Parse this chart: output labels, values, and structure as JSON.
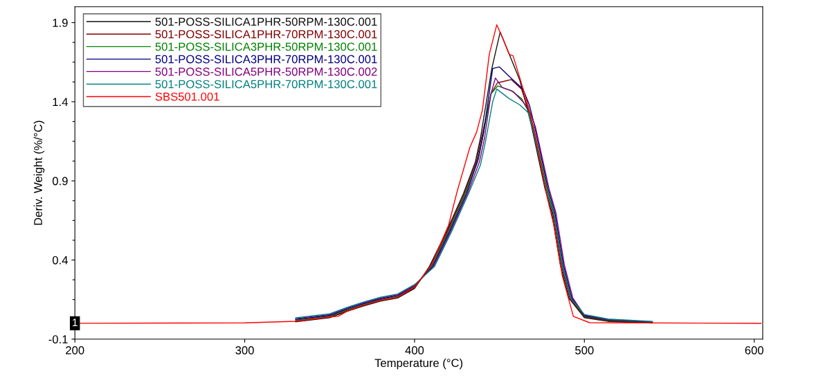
{
  "chart_data": {
    "type": "line",
    "xlabel": "Temperature (°C)",
    "ylabel": "Deriv. Weight (%/°C)",
    "xlim": [
      200,
      605
    ],
    "xticks": [
      200,
      300,
      400,
      500,
      600
    ],
    "ylim": [
      -0.1,
      2.0
    ],
    "yticks": [
      -0.1,
      {
        "value": 0.025,
        "label": null
      },
      {
        "value": 0.15,
        "label": null
      },
      {
        "value": 0.275,
        "label": null
      },
      0.4,
      {
        "value": 0.525,
        "label": null
      },
      {
        "value": 0.65,
        "label": null
      },
      {
        "value": 0.775,
        "label": null
      },
      0.9,
      {
        "value": 1.025,
        "label": null
      },
      {
        "value": 1.15,
        "label": null
      },
      {
        "value": 1.275,
        "label": null
      },
      1.4,
      {
        "value": 1.525,
        "label": null
      },
      {
        "value": 1.65,
        "label": null
      },
      {
        "value": 1.775,
        "label": null
      },
      1.9
    ],
    "grid": false,
    "legend": "top left",
    "line_style": "solid",
    "marker": "none",
    "annotations": [
      {
        "text": "1",
        "x": 200,
        "y": 0
      }
    ],
    "series": [
      {
        "name": "501-POSS-SILICA1PHR-50RPM-130C.001",
        "color": "#111111",
        "x": [
          330,
          350,
          360,
          370,
          380,
          390,
          400,
          408.8,
          418.8,
          428.8,
          435.8,
          438.8,
          445.5,
          450.4,
          455,
          462,
          465.8,
          468.8,
          476.8,
          480.8,
          485.8,
          490.8,
          500,
          514,
          540
        ],
        "values": [
          0.01,
          0.035,
          0.075,
          0.11,
          0.14,
          0.16,
          0.22,
          0.36,
          0.58,
          0.82,
          1.02,
          1.17,
          1.61,
          1.84,
          1.72,
          1.535,
          1.38,
          1.25,
          0.85,
          0.7,
          0.37,
          0.16,
          0.036,
          0.012,
          0.002
        ]
      },
      {
        "name": "501-POSS-SILICA1PHR-70RPM-130C.001",
        "color": "#800000",
        "x": [
          330,
          350,
          360,
          370,
          380,
          390,
          400,
          409.4,
          419.4,
          429.4,
          436.4,
          439.4,
          445,
          448.8,
          453,
          457,
          463,
          466.4,
          469.4,
          477.4,
          481.4,
          486.4,
          491.4,
          500,
          514,
          540
        ],
        "values": [
          0.015,
          0.04,
          0.08,
          0.115,
          0.145,
          0.165,
          0.225,
          0.36,
          0.58,
          0.82,
          1.02,
          1.17,
          1.45,
          1.52,
          1.53,
          1.54,
          1.48,
          1.37,
          1.25,
          0.85,
          0.7,
          0.37,
          0.16,
          0.04,
          0.015,
          0.004
        ]
      },
      {
        "name": "501-POSS-SILICA3PHR-50RPM-130C.001",
        "color": "#008000",
        "x": [
          330,
          350,
          360,
          370,
          380,
          390,
          400,
          410,
          420,
          430,
          437,
          440,
          445,
          449,
          457,
          463,
          467,
          470,
          478,
          482,
          487,
          492,
          500,
          514,
          540
        ],
        "values": [
          0.02,
          0.045,
          0.085,
          0.12,
          0.15,
          0.17,
          0.23,
          0.36,
          0.58,
          0.82,
          1.02,
          1.17,
          1.45,
          1.5,
          1.47,
          1.42,
          1.34,
          1.24,
          0.85,
          0.7,
          0.37,
          0.16,
          0.044,
          0.018,
          0.006
        ]
      },
      {
        "name": "501-POSS-SILICA3PHR-70RPM-130C.001",
        "color": "#000080",
        "x": [
          330,
          350,
          360,
          370,
          380,
          390,
          400,
          410.6,
          420.6,
          430.6,
          437.6,
          440.6,
          446,
          450,
          455.7,
          463.8,
          467.6,
          470.6,
          478.6,
          482.6,
          487.6,
          492.6,
          500,
          514,
          540
        ],
        "values": [
          0.025,
          0.05,
          0.09,
          0.125,
          0.155,
          0.175,
          0.235,
          0.36,
          0.58,
          0.82,
          1.04,
          1.2,
          1.61,
          1.62,
          1.56,
          1.48,
          1.38,
          1.25,
          0.85,
          0.7,
          0.37,
          0.16,
          0.048,
          0.021,
          0.008
        ]
      },
      {
        "name": "501-POSS-SILICA5PHR-50RPM-130C.002",
        "color": "#800080",
        "x": [
          330,
          350,
          360,
          370,
          380,
          390,
          400,
          411.2,
          421.2,
          431.2,
          438.2,
          441.2,
          445,
          447.6,
          451.6,
          458,
          463.8,
          468.2,
          471.2,
          479.2,
          483.2,
          488.2,
          493.2,
          500,
          514,
          540
        ],
        "values": [
          0.03,
          0.055,
          0.095,
          0.13,
          0.16,
          0.18,
          0.24,
          0.36,
          0.58,
          0.82,
          1.02,
          1.17,
          1.45,
          1.55,
          1.49,
          1.465,
          1.4,
          1.33,
          1.24,
          0.85,
          0.7,
          0.37,
          0.16,
          0.052,
          0.024,
          0.01
        ]
      },
      {
        "name": "501-POSS-SILICA5PHR-70RPM-130C.001",
        "color": "#008080",
        "x": [
          330,
          350,
          360,
          370,
          380,
          390,
          400,
          411.8,
          421.8,
          431.8,
          438.8,
          441.8,
          446,
          448.4,
          455.7,
          462,
          467,
          469.8,
          477.8,
          481.8,
          486.8,
          491.8,
          500,
          514,
          540
        ],
        "values": [
          0.035,
          0.06,
          0.1,
          0.135,
          0.165,
          0.185,
          0.245,
          0.36,
          0.58,
          0.82,
          1.0,
          1.15,
          1.4,
          1.48,
          1.42,
          1.38,
          1.33,
          1.22,
          0.83,
          0.7,
          0.37,
          0.16,
          0.056,
          0.027,
          0.012
        ]
      },
      {
        "name": "SBS501.001",
        "color": "#ff0000",
        "x": [
          200,
          300,
          330,
          350,
          355,
          360,
          370,
          380,
          390,
          400,
          410,
          420,
          425,
          432.5,
          436.6,
          440,
          444,
          448.4,
          452,
          455.7,
          458,
          462,
          467,
          470,
          478,
          482,
          487,
          493.5,
          503,
          604
        ],
        "values": [
          0,
          0.003,
          0.013,
          0.04,
          0.044,
          0.075,
          0.115,
          0.145,
          0.165,
          0.23,
          0.37,
          0.62,
          0.83,
          1.11,
          1.21,
          1.35,
          1.7,
          1.886,
          1.8,
          1.7,
          1.69,
          1.55,
          1.37,
          1.24,
          0.8,
          0.62,
          0.3,
          0.044,
          0.004,
          0
        ]
      }
    ]
  }
}
